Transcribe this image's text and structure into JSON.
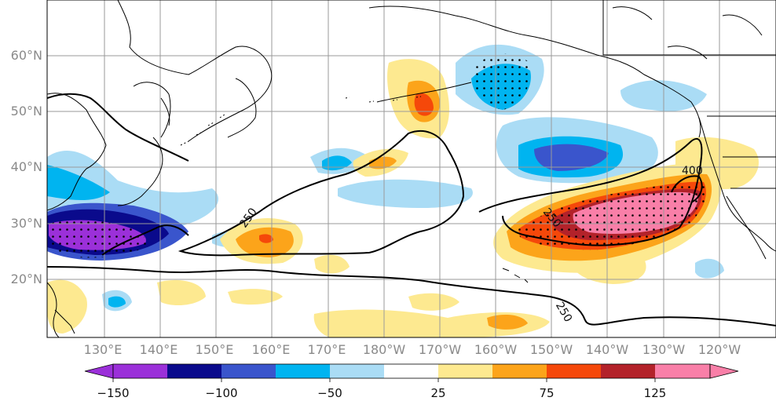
{
  "map": {
    "latitude_labels": [
      "60°N",
      "50°N",
      "40°N",
      "30°N",
      "20°N"
    ],
    "longitude_labels": [
      "130°E",
      "140°E",
      "150°E",
      "160°E",
      "170°E",
      "180°W",
      "170°W",
      "160°W",
      "150°W",
      "140°W",
      "130°W",
      "120°W"
    ],
    "contour_labels": [
      "250",
      "250",
      "250",
      "400"
    ]
  },
  "colorbar": {
    "tick_labels": [
      "−150",
      "−100",
      "−50",
      "25",
      "75",
      "125"
    ],
    "colors": [
      "#9b30d9",
      "#0a0a8c",
      "#3a55cc",
      "#00b4f0",
      "#aadcf5",
      "#ffffff",
      "#fde990",
      "#fca41a",
      "#f5480a",
      "#b3222a",
      "#f97fa8"
    ]
  },
  "colors": {
    "land_outline": "#000000",
    "grid": "#9a9a9a",
    "contour": "#000000"
  }
}
